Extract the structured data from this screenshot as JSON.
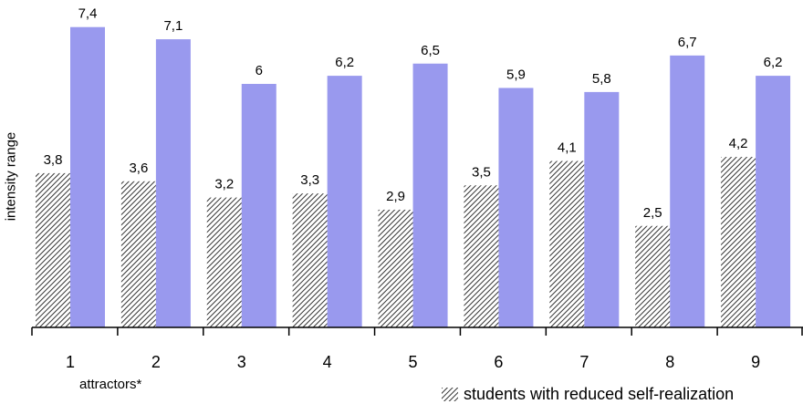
{
  "chart_data": {
    "type": "bar",
    "ylabel": "intensity range",
    "xlabel": "attractors*",
    "categories": [
      "1",
      "2",
      "3",
      "4",
      "5",
      "6",
      "7",
      "8",
      "9"
    ],
    "series": [
      {
        "name": "students with reduced self-realization",
        "pattern": "hatched",
        "values": [
          3.8,
          3.6,
          3.2,
          3.3,
          2.9,
          3.5,
          4.1,
          2.5,
          4.2
        ],
        "labels": [
          "3,8",
          "3,6",
          "3,2",
          "3,3",
          "2,9",
          "3,5",
          "4,1",
          "2,5",
          "4,2"
        ]
      },
      {
        "pattern": "solid",
        "color": "#9999ee",
        "values": [
          7.4,
          7.1,
          6,
          6.2,
          6.5,
          5.9,
          5.8,
          6.7,
          6.2
        ],
        "labels": [
          "7,4",
          "7,1",
          "6",
          "6,2",
          "6,5",
          "5,9",
          "5,8",
          "6,7",
          "6,2"
        ]
      }
    ],
    "legend": {
      "entries": [
        "students with reduced self-realization"
      ],
      "placement": "bottom-right"
    }
  }
}
